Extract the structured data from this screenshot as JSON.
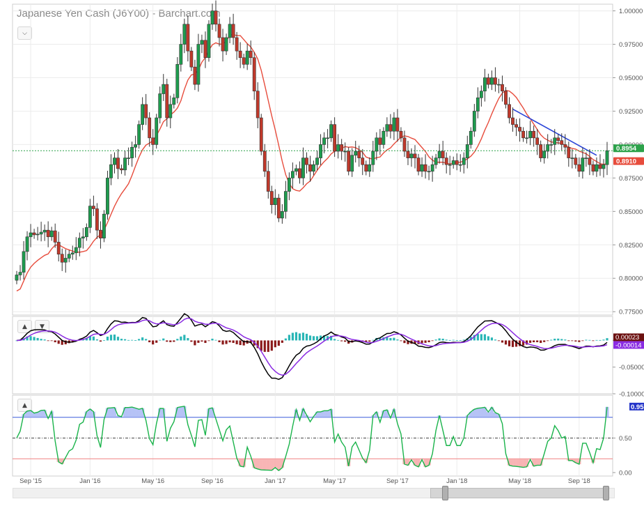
{
  "title": "Japanese Yen Cash (J6Y00) - Barchart.com",
  "controls": {
    "collapse_icon": "chevron-down-icon",
    "panel_up_icon": "chevron-up-icon",
    "panel_down_icon": "chevron-down-icon"
  },
  "colors": {
    "up": "#1e9c4e",
    "down": "#c0392b",
    "ma": "#e74c3c",
    "trend": "#2b45d8",
    "last_price_line": "#2ca24a",
    "macd": "#000000",
    "signal": "#8a2be2",
    "hist_pos": "#2ab6b6",
    "hist_neg": "#8b1a1a",
    "osc": "#19b34a",
    "overbought": "#3b5bdb",
    "oversold": "#f08080"
  },
  "chart_data": [
    {
      "type": "candlestick",
      "panel": "price",
      "title": "Japanese Yen Cash (J6Y00) - Barchart.com",
      "interval": "weekly",
      "x_tick_labels": [
        "Sep '15",
        "Jan '16",
        "May '16",
        "Sep '16",
        "Jan '17",
        "May '17",
        "Sep '17",
        "Jan '18",
        "May '18",
        "Sep '18"
      ],
      "y_tick_labels": [
        "1.00000",
        "0.97500",
        "0.95000",
        "0.92500",
        "0.90000",
        "0.87500",
        "0.85000",
        "0.82500",
        "0.80000",
        "0.77500"
      ],
      "ylim": [
        0.7725,
        1.005
      ],
      "moving_average_series_name": "",
      "last_price_labels": [
        {
          "text": "0.8954",
          "color": "#2ca24a",
          "value": 0.8954
        },
        {
          "text": "0.8910",
          "color": "#e74c3c",
          "value": 0.891
        }
      ],
      "trendline": {
        "start": {
          "index": 142,
          "value": 0.9265
        },
        "end": {
          "index": 166,
          "value": 0.892
        }
      },
      "candles_note": "weekly OHLC approximated from chart",
      "close": [
        0.8025,
        0.8045,
        0.82,
        0.831,
        0.834,
        0.8325,
        0.833,
        0.8345,
        0.836,
        0.831,
        0.8355,
        0.827,
        0.818,
        0.812,
        0.815,
        0.818,
        0.819,
        0.823,
        0.83,
        0.831,
        0.838,
        0.854,
        0.852,
        0.836,
        0.83,
        0.848,
        0.875,
        0.885,
        0.89,
        0.882,
        0.881,
        0.89,
        0.89,
        0.898,
        0.9,
        0.915,
        0.93,
        0.92,
        0.905,
        0.9,
        0.92,
        0.938,
        0.945,
        0.92,
        0.93,
        0.935,
        0.96,
        0.975,
        0.99,
        0.97,
        0.958,
        0.945,
        0.975,
        0.978,
        0.965,
        0.99,
        1.0,
        0.99,
        0.98,
        0.97,
        0.98,
        0.99,
        0.98,
        0.97,
        0.965,
        0.96,
        0.97,
        0.965,
        0.94,
        0.92,
        0.895,
        0.88,
        0.865,
        0.855,
        0.86,
        0.845,
        0.85,
        0.865,
        0.875,
        0.88,
        0.882,
        0.875,
        0.89,
        0.885,
        0.88,
        0.885,
        0.89,
        0.9,
        0.905,
        0.905,
        0.915,
        0.895,
        0.9,
        0.895,
        0.895,
        0.88,
        0.892,
        0.895,
        0.89,
        0.885,
        0.88,
        0.885,
        0.895,
        0.905,
        0.9,
        0.91,
        0.915,
        0.91,
        0.92,
        0.91,
        0.905,
        0.895,
        0.89,
        0.893,
        0.89,
        0.88,
        0.885,
        0.88,
        0.88,
        0.885,
        0.89,
        0.895,
        0.89,
        0.885,
        0.885,
        0.888,
        0.885,
        0.885,
        0.89,
        0.9,
        0.91,
        0.925,
        0.935,
        0.94,
        0.95,
        0.945,
        0.95,
        0.945,
        0.945,
        0.94,
        0.93,
        0.92,
        0.915,
        0.913,
        0.91,
        0.905,
        0.905,
        0.91,
        0.905,
        0.9,
        0.89,
        0.895,
        0.9,
        0.9,
        0.905,
        0.903,
        0.9,
        0.898,
        0.89,
        0.89,
        0.885,
        0.88,
        0.89,
        0.89,
        0.885,
        0.88,
        0.885,
        0.882,
        0.885,
        0.8954
      ],
      "x": [],
      "y": []
    },
    {
      "type": "line",
      "panel": "macd",
      "y_tick_labels": [
        "0.00023",
        "-0.05000",
        "-0.10000"
      ],
      "ylim": [
        -0.1,
        0.045
      ],
      "macd_last_label": "0.00023",
      "signal_last_label": "-0.00014",
      "x": [],
      "y": []
    },
    {
      "type": "line",
      "panel": "oscillator",
      "y_tick_labels": [
        "0.50",
        "0.00"
      ],
      "ylim": [
        -0.05,
        1.12
      ],
      "last_label": "0.95",
      "overbought_level": 0.8,
      "oversold_level": 0.2,
      "midline": 0.5,
      "x": [],
      "y": []
    }
  ]
}
